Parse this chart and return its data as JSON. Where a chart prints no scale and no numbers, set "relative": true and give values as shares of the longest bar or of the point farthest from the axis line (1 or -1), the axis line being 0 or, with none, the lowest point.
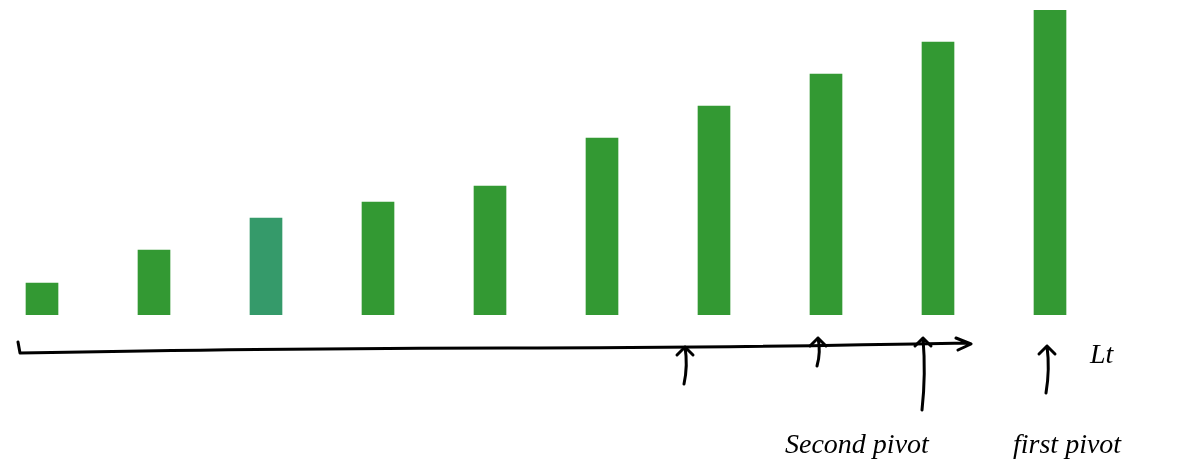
{
  "chart_data": {
    "type": "bar",
    "relative": true,
    "categories": [
      null,
      null,
      null,
      null,
      null,
      null,
      null,
      null,
      null,
      null
    ],
    "values": [
      0.105,
      0.213,
      0.318,
      0.37,
      0.423,
      0.58,
      0.685,
      0.79,
      0.895,
      1
    ],
    "colors": [
      "#339933",
      "#339933",
      "#359a6a",
      "#339933",
      "#339933",
      "#339933",
      "#339933",
      "#339933",
      "#339933",
      "#339933"
    ],
    "annotations": [
      "Second pivot",
      "first pivot",
      "Lt"
    ]
  }
}
